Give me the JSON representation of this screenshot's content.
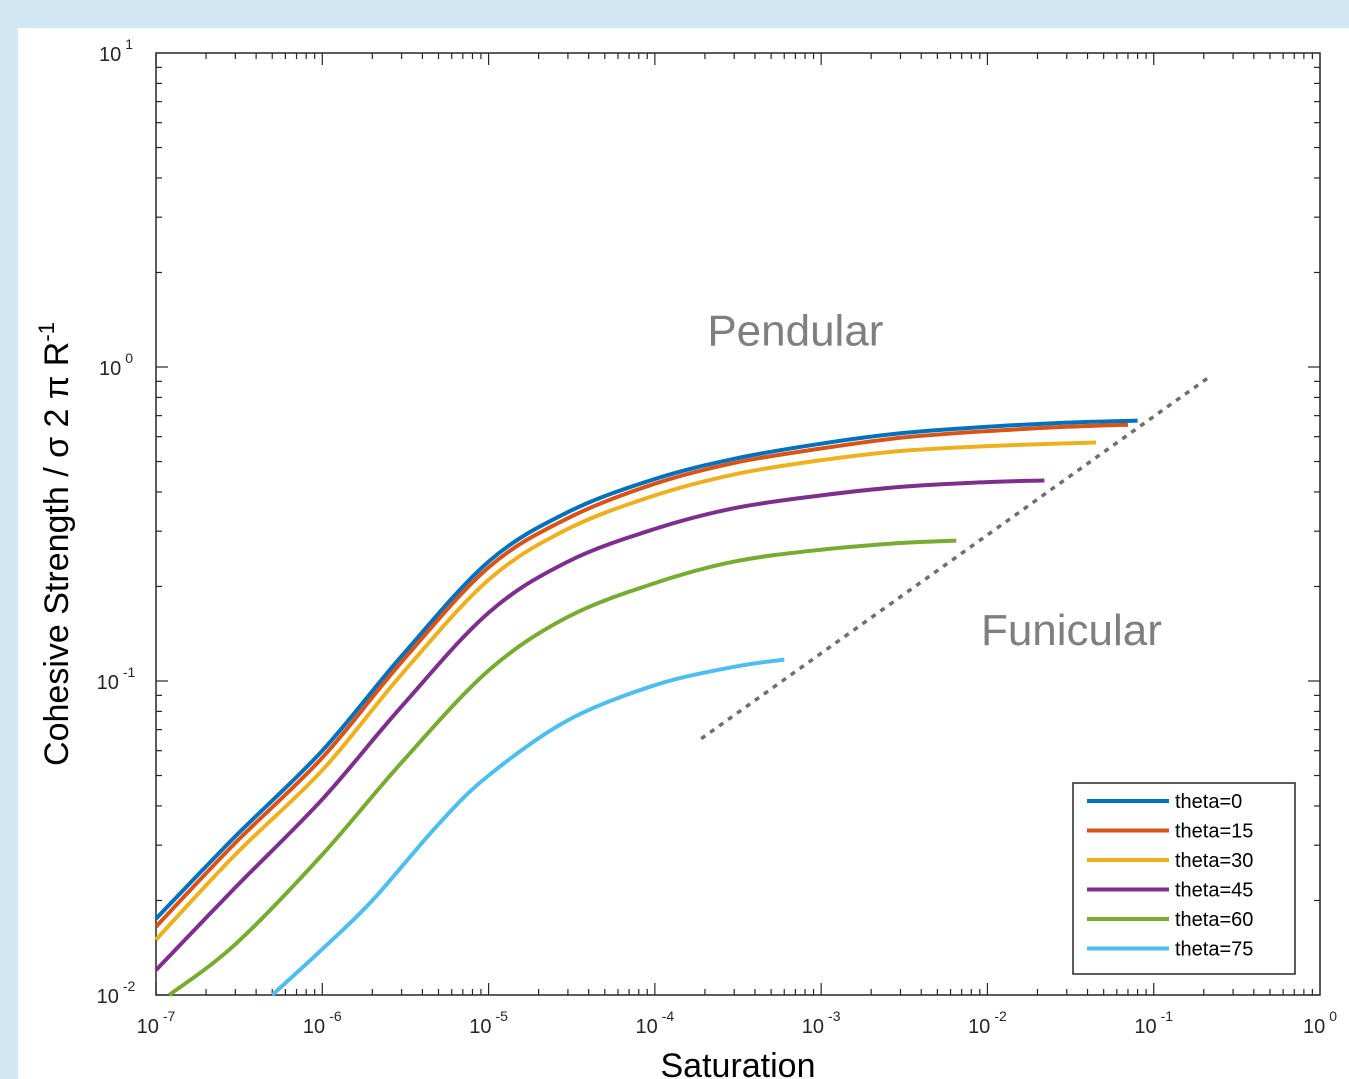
{
  "colors": {
    "background": "#d3e6f4",
    "panel": "#ffffff",
    "axis": "#262626",
    "annotation": "#7f7f7f"
  },
  "chart_data": {
    "type": "line",
    "xlabel": "Saturation",
    "ylabel": "Cohesive Strength / σ 2 π R",
    "ylabel_exponent": "-1",
    "x_scale": "log",
    "y_scale": "log",
    "xlim": [
      1e-07,
      1
    ],
    "ylim": [
      0.01,
      10
    ],
    "x_ticks": [
      {
        "base": "10",
        "exp": "-7",
        "value": 1e-07
      },
      {
        "base": "10",
        "exp": "-6",
        "value": 1e-06
      },
      {
        "base": "10",
        "exp": "-5",
        "value": 1e-05
      },
      {
        "base": "10",
        "exp": "-4",
        "value": 0.0001
      },
      {
        "base": "10",
        "exp": "-3",
        "value": 0.001
      },
      {
        "base": "10",
        "exp": "-2",
        "value": 0.01
      },
      {
        "base": "10",
        "exp": "-1",
        "value": 0.1
      },
      {
        "base": "10",
        "exp": "0",
        "value": 1
      }
    ],
    "y_ticks": [
      {
        "base": "10",
        "exp": "-2",
        "value": 0.01
      },
      {
        "base": "10",
        "exp": "-1",
        "value": 0.1
      },
      {
        "base": "10",
        "exp": "0",
        "value": 1
      },
      {
        "base": "10",
        "exp": "1",
        "value": 10
      }
    ],
    "grid": false,
    "legend_position": "bottom-right",
    "series": [
      {
        "name": "theta=0",
        "color": "#0072bd",
        "x": [
          1e-07,
          3e-07,
          1e-06,
          3e-06,
          1e-05,
          3e-05,
          0.0001,
          0.0003,
          0.001,
          0.003,
          0.01,
          0.03,
          0.08
        ],
        "y": [
          0.0175,
          0.032,
          0.06,
          0.12,
          0.24,
          0.345,
          0.44,
          0.51,
          0.57,
          0.615,
          0.645,
          0.665,
          0.675
        ]
      },
      {
        "name": "theta=15",
        "color": "#d95319",
        "x": [
          1e-07,
          3e-07,
          1e-06,
          3e-06,
          1e-05,
          3e-05,
          0.0001,
          0.0003,
          0.001,
          0.003,
          0.01,
          0.03,
          0.07
        ],
        "y": [
          0.0165,
          0.0305,
          0.057,
          0.115,
          0.23,
          0.33,
          0.425,
          0.495,
          0.55,
          0.595,
          0.625,
          0.645,
          0.655
        ]
      },
      {
        "name": "theta=30",
        "color": "#edb120",
        "x": [
          1e-07,
          3e-07,
          1e-06,
          3e-06,
          1e-05,
          3e-05,
          0.0001,
          0.0003,
          0.001,
          0.003,
          0.01,
          0.045
        ],
        "y": [
          0.015,
          0.028,
          0.052,
          0.105,
          0.21,
          0.305,
          0.39,
          0.455,
          0.505,
          0.54,
          0.56,
          0.575
        ]
      },
      {
        "name": "theta=45",
        "color": "#7e2f8e",
        "x": [
          1e-07,
          3e-07,
          1e-06,
          3e-06,
          1e-05,
          3e-05,
          0.0001,
          0.0003,
          0.001,
          0.003,
          0.01,
          0.022
        ],
        "y": [
          0.012,
          0.022,
          0.042,
          0.083,
          0.165,
          0.24,
          0.305,
          0.355,
          0.39,
          0.415,
          0.43,
          0.435
        ]
      },
      {
        "name": "theta=60",
        "color": "#77ac30",
        "x": [
          1.2e-07,
          3e-07,
          1e-06,
          3e-06,
          1e-05,
          3e-05,
          0.0001,
          0.0003,
          0.001,
          0.003,
          0.0065
        ],
        "y": [
          0.01,
          0.0145,
          0.028,
          0.055,
          0.108,
          0.16,
          0.205,
          0.24,
          0.262,
          0.275,
          0.28
        ]
      },
      {
        "name": "theta=75",
        "color": "#4dbeee",
        "x": [
          5e-07,
          1e-06,
          2e-06,
          5e-06,
          1e-05,
          3e-05,
          0.0001,
          0.0003,
          0.0006
        ],
        "y": [
          0.01,
          0.014,
          0.02,
          0.035,
          0.05,
          0.075,
          0.097,
          0.111,
          0.117
        ]
      }
    ],
    "boundary_line": {
      "style": "dotted",
      "color": "#6e6e6e",
      "x": [
        0.00019,
        0.21
      ],
      "y": [
        0.0655,
        0.92
      ]
    },
    "annotations": [
      {
        "text": "Pendular",
        "x": 0.0007,
        "y": 1.17
      },
      {
        "text": "Funicular",
        "x": 0.032,
        "y": 0.13
      }
    ]
  }
}
